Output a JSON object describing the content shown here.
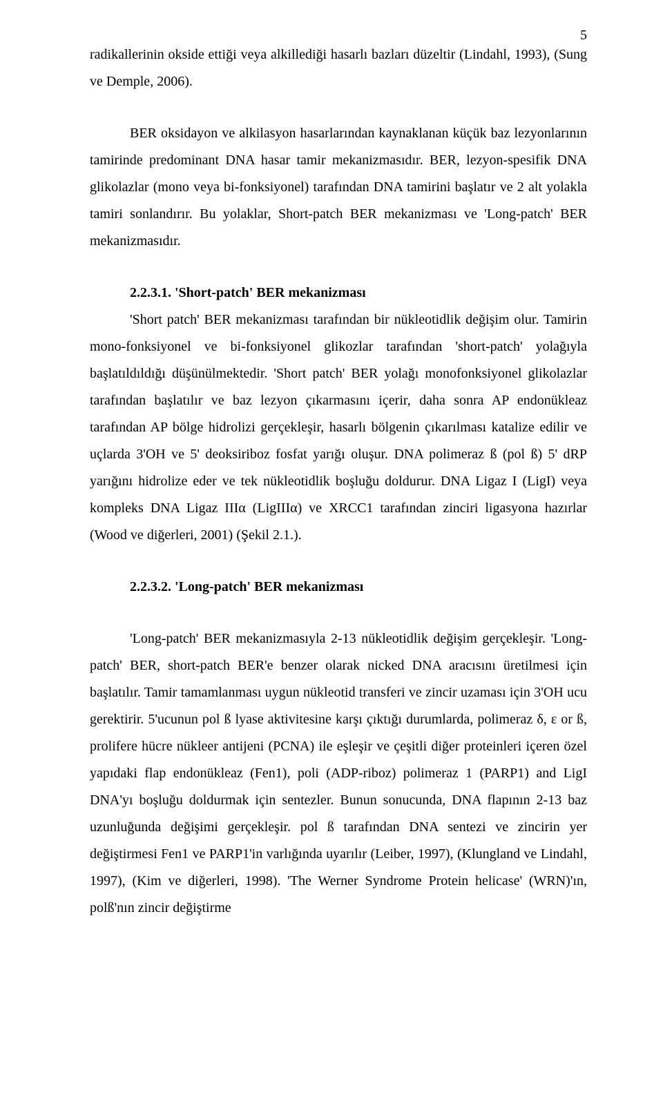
{
  "pageNumber": "5",
  "p1": "radikallerinin okside ettiği veya alkillediği hasarlı bazları düzeltir (Lindahl, 1993), (Sung ve Demple, 2006).",
  "p2": "BER oksidayon ve alkilasyon hasarlarından kaynaklanan küçük baz lezyonlarının tamirinde predominant DNA hasar tamir mekanizmasıdır. BER, lezyon-spesifik DNA glikolazlar (mono veya bi-fonksiyonel) tarafından DNA tamirini başlatır ve 2 alt yolakla tamiri sonlandırır. Bu yolaklar, Short-patch BER mekanizması ve 'Long-patch' BER mekanizmasıdır.",
  "h1": "2.2.3.1. 'Short-patch' BER mekanizması",
  "p3": "'Short patch' BER mekanizması tarafından bir nükleotidlik değişim olur. Tamirin mono-fonksiyonel ve bi-fonksiyonel glikozlar tarafından 'short-patch' yolağıyla başlatıldıldığı düşünülmektedir. 'Short patch' BER yolağı monofonksiyonel glikolazlar tarafından başlatılır ve baz lezyon çıkarmasını içerir, daha sonra AP endonükleaz tarafından AP bölge hidrolizi gerçekleşir, hasarlı bölgenin çıkarılması katalize edilir ve uçlarda 3'OH ve 5' deoksiriboz fosfat yarığı oluşur. DNA polimeraz ß (pol ß) 5' dRP yarığını hidrolize eder ve tek nükleotidlik boşluğu doldurur. DNA Ligaz I (LigI) veya kompleks DNA Ligaz IIIα (LigIIIα) ve XRCC1 tarafından zinciri ligasyona hazırlar (Wood ve diğerleri, 2001) (Şekil 2.1.).",
  "h2": "2.2.3.2. 'Long-patch' BER mekanizması",
  "p4": "'Long-patch' BER mekanizmasıyla 2-13 nükleotidlik değişim gerçekleşir. 'Long-patch' BER, short-patch BER'e  benzer olarak nicked DNA aracısını üretilmesi için başlatılır. Tamir tamamlanması uygun nükleotid transferi ve zincir uzaması için 3'OH ucu gerektirir. 5'ucunun pol ß lyase aktivitesine karşı çıktığı durumlarda, polimeraz δ, ε or ß, prolifere hücre nükleer antijeni (PCNA) ile eşleşir ve çeşitli diğer proteinleri içeren özel yapıdaki flap endonükleaz (Fen1), poli (ADP-riboz) polimeraz 1 (PARP1) and LigI DNA'yı boşluğu doldurmak için sentezler. Bunun sonucunda, DNA flapının 2-13 baz uzunluğunda değişimi gerçekleşir. pol ß tarafından DNA sentezi ve zincirin yer değiştirmesi Fen1 ve PARP1'in varlığında uyarılır (Leiber, 1997), (Klungland ve Lindahl, 1997), (Kim ve diğerleri, 1998). 'The Werner Syndrome Protein helicase' (WRN)'ın, polß'nın zincir değiştirme"
}
